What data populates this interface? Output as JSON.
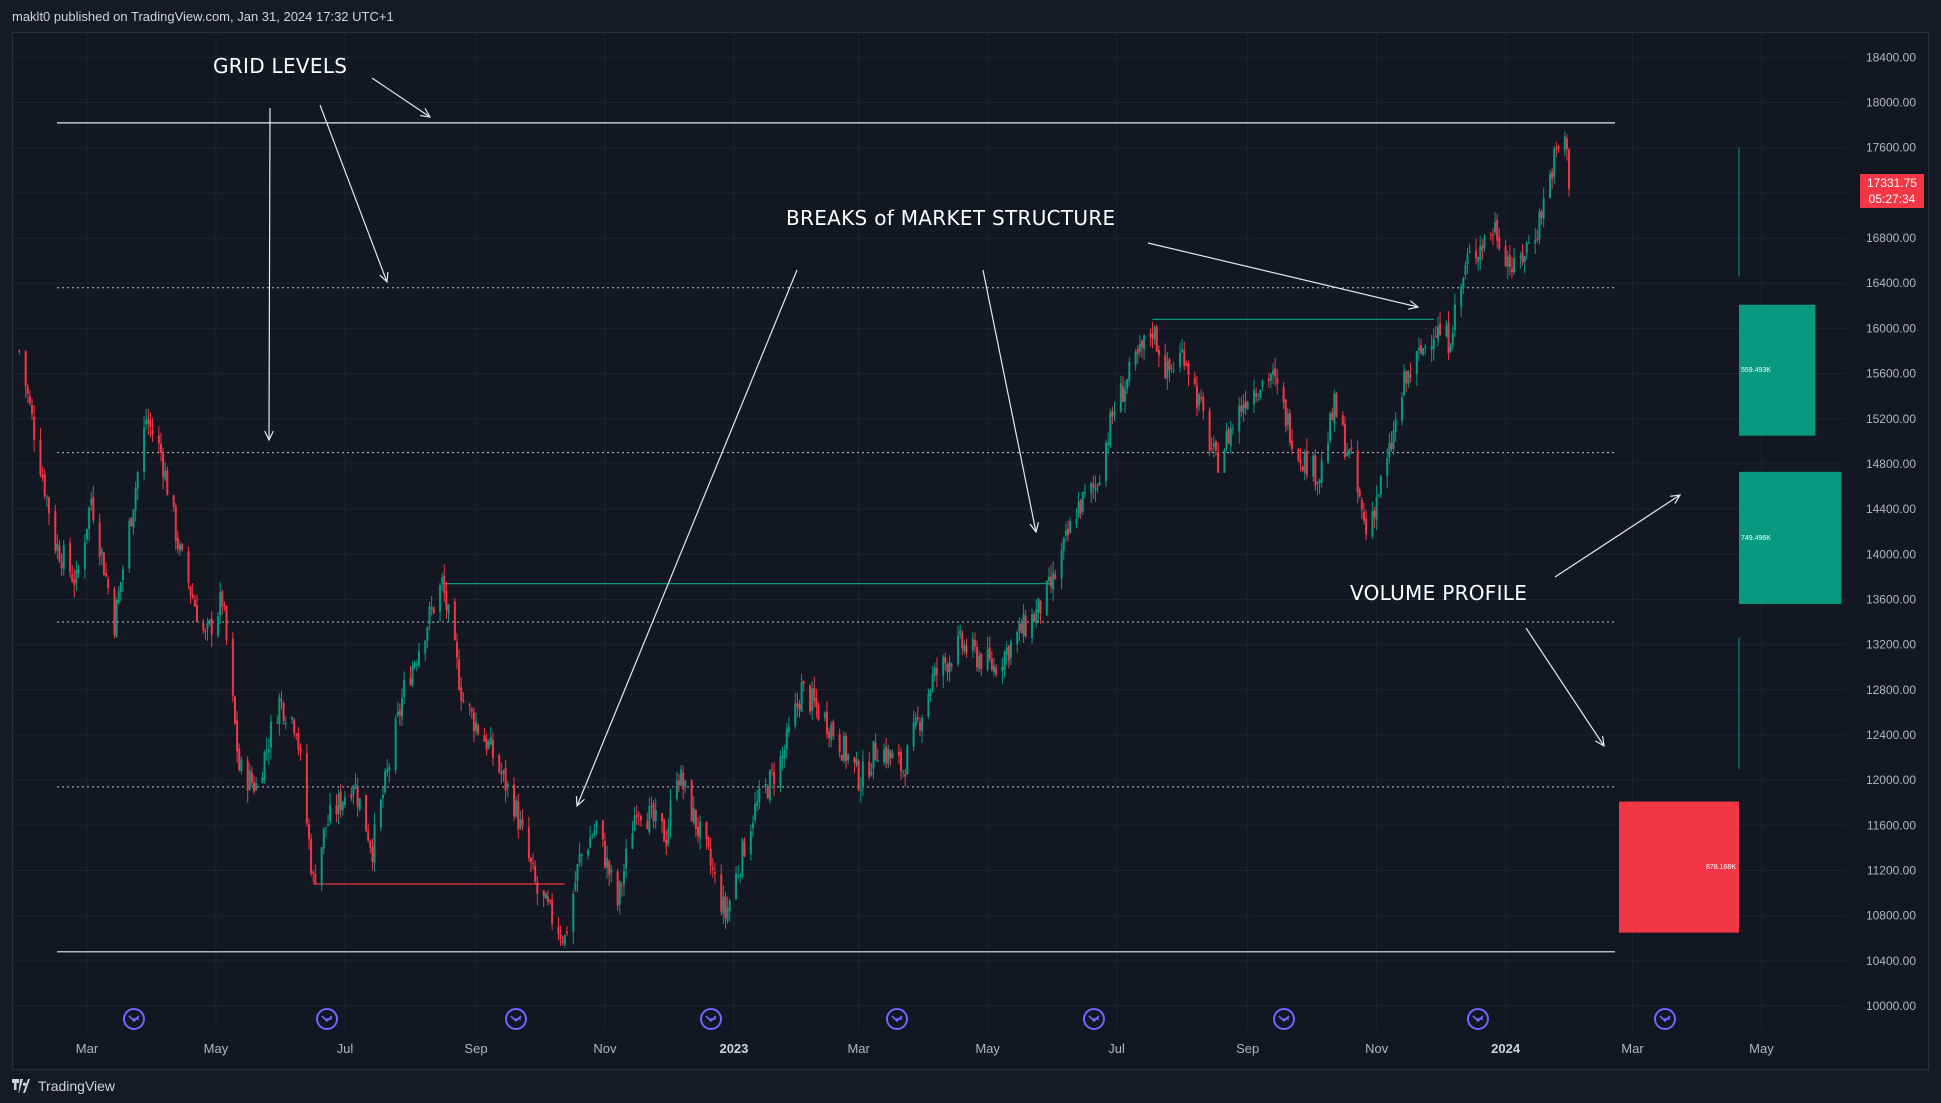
{
  "header": {
    "published": "maklt0 published on TradingView.com, Jan 31, 2024 17:32 UTC+1"
  },
  "footer": {
    "brand": "TradingView"
  },
  "price_tag": {
    "price": "17331.75",
    "countdown": "05:27:34"
  },
  "annotations": {
    "grid_levels": "GRID LEVELS",
    "bms": "BREAKS of MARKET STRUCTURE",
    "volume_profile": "VOLUME PROFILE"
  },
  "colors": {
    "background": "#131722",
    "up": "#089981",
    "down": "#f23645",
    "grid": "#1f2330",
    "text": "#b2b5be"
  },
  "chart_data": {
    "type": "candlestick",
    "title": "",
    "y_axis": {
      "ticks": [
        "18400.00",
        "18000.00",
        "17600.00",
        "17200.00",
        "16800.00",
        "16400.00",
        "16000.00",
        "15600.00",
        "15200.00",
        "14800.00",
        "14400.00",
        "14000.00",
        "13600.00",
        "13200.00",
        "12800.00",
        "12400.00",
        "12000.00",
        "11600.00",
        "11200.00",
        "10800.00",
        "10400.00",
        "10000.00"
      ],
      "range": [
        9900,
        18700
      ]
    },
    "x_axis": {
      "ticks": [
        "Mar",
        "May",
        "Jul",
        "Sep",
        "Nov",
        "2023",
        "Mar",
        "May",
        "Jul",
        "Sep",
        "Nov",
        "2024",
        "Mar",
        "May"
      ],
      "range": [
        "2022-01-25",
        "2024-06-10"
      ]
    },
    "grid_levels": [
      17820,
      16360,
      14900,
      13400,
      11940,
      10480
    ],
    "market_structure_levels": [
      {
        "price": 13740,
        "from": "2022-08-16",
        "to": "2023-06-01",
        "color": "#089981"
      },
      {
        "price": 16080,
        "from": "2023-07-18",
        "to": "2023-11-28",
        "color": "#089981"
      },
      {
        "price": 11080,
        "from": "2022-06-16",
        "to": "2022-10-13",
        "color": "#f23645"
      }
    ],
    "volume_profile": [
      {
        "low": 15050,
        "high": 16210,
        "volume": "559.493K",
        "direction": "up"
      },
      {
        "low": 13560,
        "high": 14730,
        "volume": "749.496K",
        "direction": "up"
      },
      {
        "low": 10650,
        "high": 11810,
        "volume": "878.168K",
        "direction": "down"
      }
    ],
    "price_path": [
      [
        "2022-01-28",
        15800
      ],
      [
        "2022-02-14",
        14100
      ],
      [
        "2022-02-24",
        13750
      ],
      [
        "2022-03-03",
        14500
      ],
      [
        "2022-03-14",
        13400
      ],
      [
        "2022-03-29",
        15200
      ],
      [
        "2022-04-05",
        14900
      ],
      [
        "2022-04-14",
        14000
      ],
      [
        "2022-04-26",
        13250
      ],
      [
        "2022-05-04",
        13600
      ],
      [
        "2022-05-12",
        12100
      ],
      [
        "2022-05-20",
        11950
      ],
      [
        "2022-05-31",
        12700
      ],
      [
        "2022-06-08",
        12500
      ],
      [
        "2022-06-16",
        11100
      ],
      [
        "2022-06-22",
        11600
      ],
      [
        "2022-07-05",
        12000
      ],
      [
        "2022-07-14",
        11400
      ],
      [
        "2022-07-29",
        12800
      ],
      [
        "2022-08-09",
        13400
      ],
      [
        "2022-08-16",
        13740
      ],
      [
        "2022-08-26",
        12700
      ],
      [
        "2022-09-07",
        12300
      ],
      [
        "2022-09-19",
        11800
      ],
      [
        "2022-09-30",
        11000
      ],
      [
        "2022-10-13",
        10600
      ],
      [
        "2022-10-20",
        11300
      ],
      [
        "2022-10-28",
        11600
      ],
      [
        "2022-11-07",
        10900
      ],
      [
        "2022-11-16",
        11800
      ],
      [
        "2022-11-30",
        11500
      ],
      [
        "2022-12-05",
        12100
      ],
      [
        "2022-12-20",
        11300
      ],
      [
        "2022-12-28",
        10800
      ],
      [
        "2023-01-10",
        11700
      ],
      [
        "2023-01-24",
        12200
      ],
      [
        "2023-02-02",
        12800
      ],
      [
        "2023-02-15",
        12500
      ],
      [
        "2023-03-02",
        12000
      ],
      [
        "2023-03-10",
        12300
      ],
      [
        "2023-03-22",
        12100
      ],
      [
        "2023-04-05",
        12900
      ],
      [
        "2023-04-18",
        13200
      ],
      [
        "2023-05-04",
        13000
      ],
      [
        "2023-05-16",
        13300
      ],
      [
        "2023-05-25",
        13500
      ],
      [
        "2023-06-01",
        13750
      ],
      [
        "2023-06-12",
        14400
      ],
      [
        "2023-06-21",
        14600
      ],
      [
        "2023-06-30",
        15300
      ],
      [
        "2023-07-18",
        16000
      ],
      [
        "2023-07-25",
        15600
      ],
      [
        "2023-08-02",
        15800
      ],
      [
        "2023-08-17",
        14800
      ],
      [
        "2023-08-31",
        15400
      ],
      [
        "2023-09-12",
        15600
      ],
      [
        "2023-09-25",
        14900
      ],
      [
        "2023-10-05",
        14700
      ],
      [
        "2023-10-12",
        15300
      ],
      [
        "2023-10-20",
        14800
      ],
      [
        "2023-10-27",
        14200
      ],
      [
        "2023-11-06",
        14800
      ],
      [
        "2023-11-14",
        15500
      ],
      [
        "2023-11-28",
        16000
      ],
      [
        "2023-12-05",
        15900
      ],
      [
        "2023-12-14",
        16600
      ],
      [
        "2023-12-27",
        16900
      ],
      [
        "2024-01-05",
        16500
      ],
      [
        "2024-01-16",
        16900
      ],
      [
        "2024-01-24",
        17500
      ],
      [
        "2024-01-29",
        17700
      ],
      [
        "2024-01-31",
        17330
      ]
    ]
  }
}
